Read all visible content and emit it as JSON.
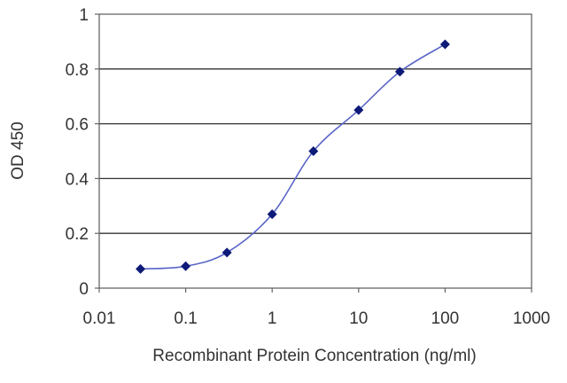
{
  "chart_data": {
    "type": "line",
    "title": "",
    "xlabel": "Recombinant Protein Concentration (ng/ml)",
    "ylabel": "OD 450",
    "x_scale": "log",
    "xlim": [
      0.01,
      1000
    ],
    "ylim": [
      0,
      1
    ],
    "x_ticks": [
      "0.01",
      "0.1",
      "1",
      "10",
      "100",
      "1000"
    ],
    "y_ticks": [
      "0",
      "0.2",
      "0.4",
      "0.6",
      "0.8",
      "1"
    ],
    "grid": "horizontal",
    "legend": "none",
    "series": [
      {
        "x": [
          0.03,
          0.1,
          0.3,
          1,
          3,
          10,
          30,
          100
        ],
        "y": [
          0.07,
          0.08,
          0.13,
          0.27,
          0.5,
          0.65,
          0.79,
          0.89
        ]
      }
    ],
    "colors": {
      "line": "#5a66c8",
      "marker": "#0d1a78",
      "grid": "#333333",
      "frame": "#666666"
    }
  }
}
